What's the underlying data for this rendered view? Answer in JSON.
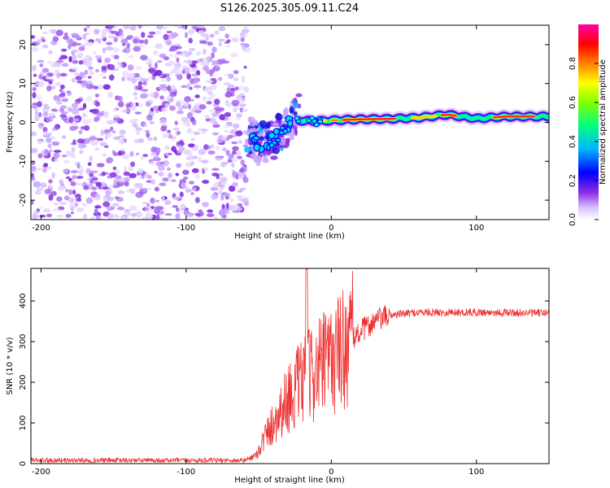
{
  "figure_title": "S126.2025.305.09.11.C24",
  "colors": {
    "snr_line": "#ee3333",
    "colormap": [
      "#ffffff",
      "#c9a8ff",
      "#8a2be2",
      "#0000ff",
      "#00c8ff",
      "#00ff80",
      "#ffff00",
      "#ff8000",
      "#ff0000",
      "#ff00aa"
    ]
  },
  "chart_data": [
    {
      "type": "heatmap",
      "title": "S126.2025.305.09.11.C24",
      "xlabel": "Height of straight line (km)",
      "ylabel": "Frequency (Hz)",
      "xlim": [
        -207,
        150
      ],
      "ylim": [
        -25,
        25
      ],
      "xticks": [
        -200,
        -100,
        0,
        100
      ],
      "xtick_labels": [
        "-200",
        "-100",
        "0",
        "100"
      ],
      "yticks": [
        -20,
        -10,
        0,
        10,
        20
      ],
      "ytick_labels": [
        "-20",
        "-10",
        "0",
        "10",
        "20"
      ],
      "colorbar": {
        "label": "Normalized spectral amplitude",
        "range": [
          0,
          1
        ],
        "ticks": [
          0.0,
          0.2,
          0.4,
          0.6,
          0.8
        ],
        "tick_labels": [
          "0.0",
          "0.2",
          "0.4",
          "0.6",
          "0.8"
        ]
      },
      "noise_region": {
        "x_range": [
          -207,
          -58
        ],
        "freq_range": [
          -25,
          25
        ],
        "amplitude": [
          0.05,
          0.25
        ]
      },
      "occultation_region": {
        "x_range": [
          -58,
          -22
        ],
        "ridge": [
          {
            "x": -58,
            "f": -3.5
          },
          {
            "x": -50,
            "f": -5.5
          },
          {
            "x": -42,
            "f": -5.0
          },
          {
            "x": -36,
            "f": -3.0
          },
          {
            "x": -30,
            "f": -1.0
          },
          {
            "x": -24,
            "f": 2.5
          }
        ]
      },
      "carrier_ridge": [
        {
          "x": -22,
          "f": 0.5
        },
        {
          "x": -10,
          "f": 0.3
        },
        {
          "x": 0,
          "f": 0.5
        },
        {
          "x": 20,
          "f": 0.8
        },
        {
          "x": 40,
          "f": 0.9
        },
        {
          "x": 60,
          "f": 1.2
        },
        {
          "x": 80,
          "f": 2.0
        },
        {
          "x": 90,
          "f": 1.5
        },
        {
          "x": 100,
          "f": 1.0
        },
        {
          "x": 120,
          "f": 1.5
        },
        {
          "x": 150,
          "f": 1.5
        }
      ]
    },
    {
      "type": "line",
      "xlabel": "Height of straight line (km)",
      "ylabel": "SNR (10 * v/v)",
      "xlim": [
        -207,
        150
      ],
      "ylim": [
        0,
        480
      ],
      "xticks": [
        -200,
        -100,
        0,
        100
      ],
      "xtick_labels": [
        "-200",
        "-100",
        "0",
        "100"
      ],
      "yticks": [
        0,
        100,
        200,
        300,
        400
      ],
      "ytick_labels": [
        "0",
        "100",
        "200",
        "300",
        "400"
      ],
      "series": [
        {
          "name": "SNR",
          "envelope": [
            {
              "x": -207,
              "y": 8
            },
            {
              "x": -60,
              "y": 8
            },
            {
              "x": -52,
              "y": 20
            },
            {
              "x": -45,
              "y": 70
            },
            {
              "x": -40,
              "y": 100
            },
            {
              "x": -30,
              "y": 160
            },
            {
              "x": -20,
              "y": 200
            },
            {
              "x": -10,
              "y": 230
            },
            {
              "x": 0,
              "y": 255
            },
            {
              "x": 10,
              "y": 290
            },
            {
              "x": 20,
              "y": 325
            },
            {
              "x": 30,
              "y": 350
            },
            {
              "x": 40,
              "y": 365
            },
            {
              "x": 60,
              "y": 372
            },
            {
              "x": 100,
              "y": 372
            },
            {
              "x": 150,
              "y": 370
            }
          ],
          "peak": {
            "x": -17,
            "y": 478
          }
        }
      ]
    }
  ]
}
